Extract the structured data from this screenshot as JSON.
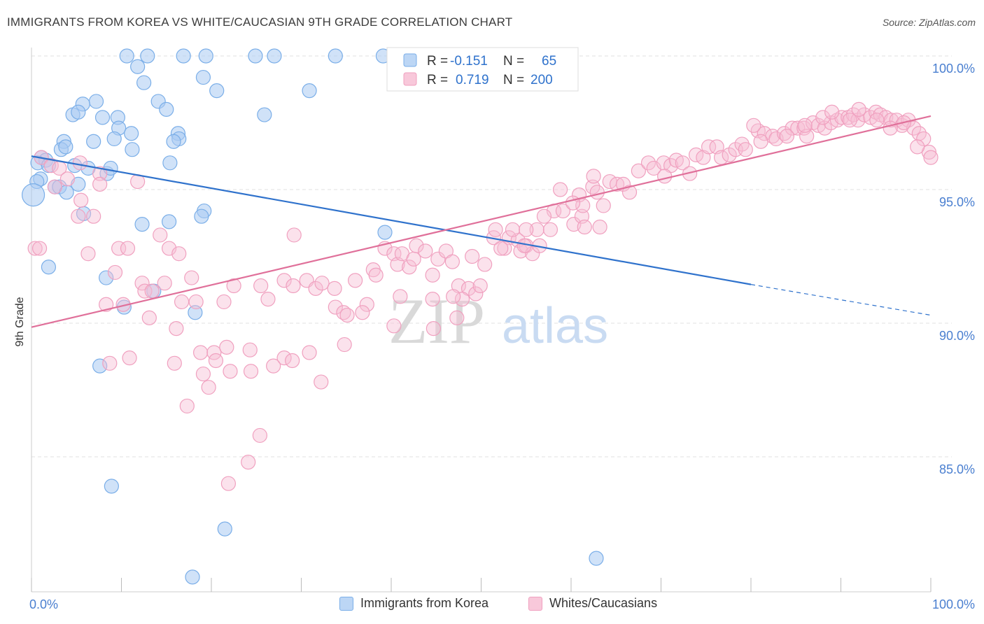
{
  "title": "IMMIGRANTS FROM KOREA VS WHITE/CAUCASIAN 9TH GRADE CORRELATION CHART",
  "source": "Source: ZipAtlas.com",
  "watermark": {
    "zip": "ZIP",
    "atlas": "atlas"
  },
  "legend_box": {
    "rows": [
      {
        "r_label": "R =",
        "r_value": "-0.151",
        "n_label": "N =",
        "n_value": "65"
      },
      {
        "r_label": "R =",
        "r_value": "0.719",
        "n_label": "N =",
        "n_value": "200"
      }
    ]
  },
  "chart_data": {
    "type": "scatter",
    "title": "IMMIGRANTS FROM KOREA VS WHITE/CAUCASIAN 9TH GRADE CORRELATION CHART",
    "xlabel": "",
    "ylabel": "9th Grade",
    "xlim": [
      0,
      100
    ],
    "ylim": [
      80.3,
      100.5
    ],
    "x_tick_labels": [
      "0.0%",
      "100.0%"
    ],
    "y_ticks": [
      85,
      90,
      95,
      100
    ],
    "y_tick_labels": [
      "85.0%",
      "90.0%",
      "95.0%",
      "100.0%"
    ],
    "grid": true,
    "legend_position": "top-center",
    "series": [
      {
        "name": "Immigrants from Korea",
        "color": "#7aaee8",
        "line_color": "#2f72cc",
        "trend": {
          "x0": 0,
          "y0": 96.25,
          "x1": 80,
          "y1": 91.45,
          "x_dash_end": 100,
          "y_dash_end": 90.3
        },
        "points": [
          [
            10.6,
            100
          ],
          [
            12.9,
            100
          ],
          [
            16.9,
            100
          ],
          [
            19.4,
            100
          ],
          [
            24.9,
            100
          ],
          [
            27.0,
            100
          ],
          [
            33.8,
            100
          ],
          [
            39.1,
            100
          ],
          [
            11.8,
            99.6
          ],
          [
            12.5,
            99.0
          ],
          [
            19.1,
            99.2
          ],
          [
            20.6,
            98.7
          ],
          [
            30.9,
            98.7
          ],
          [
            7.2,
            98.3
          ],
          [
            5.7,
            98.2
          ],
          [
            14.1,
            98.3
          ],
          [
            15.0,
            98.0
          ],
          [
            25.9,
            97.8
          ],
          [
            4.6,
            97.8
          ],
          [
            5.2,
            97.9
          ],
          [
            7.9,
            97.7
          ],
          [
            9.6,
            97.7
          ],
          [
            9.7,
            97.3
          ],
          [
            11.1,
            97.1
          ],
          [
            16.3,
            97.1
          ],
          [
            16.4,
            96.9
          ],
          [
            3.6,
            96.8
          ],
          [
            6.9,
            96.8
          ],
          [
            9.2,
            96.9
          ],
          [
            15.8,
            96.8
          ],
          [
            3.3,
            96.5
          ],
          [
            3.8,
            96.6
          ],
          [
            11.2,
            96.5
          ],
          [
            1.1,
            96.2
          ],
          [
            1.6,
            96.1
          ],
          [
            0.7,
            96.0
          ],
          [
            1.9,
            95.9
          ],
          [
            4.8,
            95.9
          ],
          [
            6.3,
            95.8
          ],
          [
            8.4,
            95.6
          ],
          [
            8.8,
            95.8
          ],
          [
            15.4,
            96.0
          ],
          [
            1.0,
            95.4
          ],
          [
            0.6,
            95.3
          ],
          [
            2.6,
            95.1
          ],
          [
            3.1,
            95.1
          ],
          [
            3.9,
            94.9
          ],
          [
            5.2,
            95.2
          ],
          [
            0.2,
            94.8
          ],
          [
            19.2,
            94.2
          ],
          [
            18.9,
            94.0
          ],
          [
            5.8,
            94.1
          ],
          [
            12.3,
            93.7
          ],
          [
            15.3,
            93.8
          ],
          [
            39.3,
            93.4
          ],
          [
            1.9,
            92.1
          ],
          [
            8.3,
            91.7
          ],
          [
            13.6,
            91.2
          ],
          [
            10.3,
            90.6
          ],
          [
            18.2,
            90.4
          ],
          [
            7.6,
            88.4
          ],
          [
            8.9,
            83.9
          ],
          [
            21.5,
            82.3
          ],
          [
            62.8,
            81.2
          ],
          [
            17.9,
            80.5
          ]
        ]
      },
      {
        "name": "Whites/Caucasians",
        "color": "#f0a0bf",
        "line_color": "#e0709a",
        "trend": {
          "x0": 0,
          "y0": 89.85,
          "x1": 100,
          "y1": 97.75
        },
        "points": [
          [
            1.1,
            96.2
          ],
          [
            2.2,
            95.9
          ],
          [
            3.1,
            95.8
          ],
          [
            4.0,
            95.4
          ],
          [
            5.4,
            96.0
          ],
          [
            2.6,
            95.1
          ],
          [
            7.6,
            95.6
          ],
          [
            7.6,
            95.2
          ],
          [
            11.8,
            95.3
          ],
          [
            5.5,
            94.6
          ],
          [
            5.2,
            94.0
          ],
          [
            6.9,
            94.0
          ],
          [
            0.4,
            92.8
          ],
          [
            0.9,
            92.8
          ],
          [
            6.3,
            92.6
          ],
          [
            9.7,
            92.8
          ],
          [
            10.7,
            92.8
          ],
          [
            14.3,
            93.3
          ],
          [
            15.3,
            92.8
          ],
          [
            16.4,
            92.6
          ],
          [
            29.2,
            93.3
          ],
          [
            9.3,
            91.9
          ],
          [
            12.3,
            91.5
          ],
          [
            14.8,
            91.5
          ],
          [
            17.8,
            91.7
          ],
          [
            12.6,
            91.2
          ],
          [
            13.4,
            91.2
          ],
          [
            8.3,
            90.7
          ],
          [
            10.2,
            90.7
          ],
          [
            16.7,
            90.8
          ],
          [
            18.3,
            90.8
          ],
          [
            21.4,
            90.8
          ],
          [
            22.5,
            91.4
          ],
          [
            25.5,
            91.4
          ],
          [
            26.3,
            90.9
          ],
          [
            28.1,
            91.6
          ],
          [
            29.1,
            91.4
          ],
          [
            30.6,
            91.6
          ],
          [
            31.6,
            91.3
          ],
          [
            32.3,
            91.5
          ],
          [
            13.1,
            90.2
          ],
          [
            16.1,
            89.8
          ],
          [
            18.8,
            88.9
          ],
          [
            20.3,
            88.9
          ],
          [
            21.7,
            89.1
          ],
          [
            24.3,
            89.0
          ],
          [
            28.1,
            88.7
          ],
          [
            29.0,
            88.6
          ],
          [
            10.9,
            88.7
          ],
          [
            15.9,
            88.5
          ],
          [
            20.5,
            88.6
          ],
          [
            26.9,
            88.4
          ],
          [
            30.9,
            88.9
          ],
          [
            32.2,
            87.8
          ],
          [
            34.8,
            89.2
          ],
          [
            22.1,
            88.2
          ],
          [
            24.4,
            88.2
          ],
          [
            19.1,
            88.1
          ],
          [
            19.7,
            87.6
          ],
          [
            17.3,
            86.9
          ],
          [
            25.4,
            85.8
          ],
          [
            24.1,
            84.8
          ],
          [
            21.9,
            84.0
          ],
          [
            8.7,
            88.5
          ],
          [
            33.8,
            90.6
          ],
          [
            34.7,
            90.4
          ],
          [
            35.1,
            90.3
          ],
          [
            37.3,
            90.7
          ],
          [
            36.8,
            90.4
          ],
          [
            33.7,
            91.3
          ],
          [
            36.0,
            91.6
          ],
          [
            38.0,
            92.0
          ],
          [
            38.3,
            91.8
          ],
          [
            39.3,
            92.8
          ],
          [
            40.3,
            92.6
          ],
          [
            40.7,
            92.2
          ],
          [
            41.2,
            92.6
          ],
          [
            42.0,
            92.1
          ],
          [
            42.5,
            92.4
          ],
          [
            42.8,
            92.9
          ],
          [
            43.8,
            92.7
          ],
          [
            45.2,
            92.4
          ],
          [
            44.6,
            91.8
          ],
          [
            46.1,
            92.7
          ],
          [
            46.8,
            92.3
          ],
          [
            47.5,
            91.4
          ],
          [
            48.6,
            91.3
          ],
          [
            49.4,
            91.1
          ],
          [
            49.9,
            91.4
          ],
          [
            44.6,
            90.9
          ],
          [
            47.9,
            90.9
          ],
          [
            41.0,
            91.0
          ],
          [
            40.3,
            89.9
          ],
          [
            44.7,
            89.8
          ],
          [
            51.4,
            93.2
          ],
          [
            51.6,
            93.5
          ],
          [
            53.1,
            93.2
          ],
          [
            52.6,
            92.8
          ],
          [
            54.1,
            93.1
          ],
          [
            54.4,
            92.7
          ],
          [
            53.5,
            93.5
          ],
          [
            55.0,
            92.9
          ],
          [
            56.2,
            93.5
          ],
          [
            57.7,
            93.5
          ],
          [
            58.1,
            94.2
          ],
          [
            59.1,
            94.2
          ],
          [
            60.3,
            93.7
          ],
          [
            61.2,
            94.0
          ],
          [
            58.8,
            95.0
          ],
          [
            60.9,
            94.8
          ],
          [
            61.3,
            94.4
          ],
          [
            62.4,
            95.1
          ],
          [
            62.9,
            94.9
          ],
          [
            63.6,
            94.4
          ],
          [
            64.3,
            95.3
          ],
          [
            65.1,
            95.2
          ],
          [
            65.8,
            95.2
          ],
          [
            66.5,
            94.9
          ],
          [
            67.5,
            95.7
          ],
          [
            68.6,
            96.0
          ],
          [
            69.2,
            95.8
          ],
          [
            70.3,
            96.0
          ],
          [
            71.1,
            95.9
          ],
          [
            71.7,
            96.1
          ],
          [
            72.4,
            96.0
          ],
          [
            73.2,
            95.6
          ],
          [
            73.9,
            96.3
          ],
          [
            74.7,
            96.2
          ],
          [
            75.3,
            96.6
          ],
          [
            76.2,
            96.6
          ],
          [
            76.7,
            96.2
          ],
          [
            77.6,
            96.3
          ],
          [
            78.3,
            96.5
          ],
          [
            79.0,
            96.7
          ],
          [
            79.4,
            96.5
          ],
          [
            70.4,
            95.5
          ],
          [
            63.2,
            93.6
          ],
          [
            61.5,
            93.6
          ],
          [
            62.5,
            95.5
          ],
          [
            60.2,
            94.5
          ],
          [
            55.7,
            92.6
          ],
          [
            55.0,
            93.5
          ],
          [
            57.0,
            94.0
          ],
          [
            54.8,
            92.9
          ],
          [
            52.2,
            92.8
          ],
          [
            50.4,
            92.2
          ],
          [
            56.5,
            92.9
          ],
          [
            49.0,
            92.5
          ],
          [
            46.9,
            91.0
          ],
          [
            47.3,
            90.2
          ],
          [
            80.8,
            97.2
          ],
          [
            81.5,
            97.1
          ],
          [
            82.4,
            97.0
          ],
          [
            82.8,
            96.9
          ],
          [
            83.7,
            97.1
          ],
          [
            84.6,
            97.3
          ],
          [
            85.2,
            97.3
          ],
          [
            85.9,
            97.3
          ],
          [
            86.2,
            97.0
          ],
          [
            86.9,
            97.5
          ],
          [
            87.5,
            97.4
          ],
          [
            88.2,
            97.3
          ],
          [
            88.9,
            97.5
          ],
          [
            89.6,
            97.6
          ],
          [
            90.1,
            97.7
          ],
          [
            90.8,
            97.7
          ],
          [
            91.4,
            97.8
          ],
          [
            91.9,
            97.6
          ],
          [
            92.6,
            97.8
          ],
          [
            93.3,
            97.7
          ],
          [
            93.9,
            97.9
          ],
          [
            94.4,
            97.8
          ],
          [
            95.0,
            97.7
          ],
          [
            95.6,
            97.6
          ],
          [
            96.2,
            97.6
          ],
          [
            96.8,
            97.4
          ],
          [
            97.5,
            97.6
          ],
          [
            98.1,
            97.3
          ],
          [
            98.7,
            97.1
          ],
          [
            99.2,
            96.9
          ],
          [
            99.8,
            96.4
          ],
          [
            100.0,
            96.2
          ],
          [
            80.3,
            97.4
          ],
          [
            81.1,
            96.8
          ],
          [
            84.0,
            97.0
          ],
          [
            86.0,
            97.4
          ],
          [
            88.0,
            97.7
          ],
          [
            89.0,
            97.9
          ],
          [
            91.0,
            97.6
          ],
          [
            92.0,
            98.0
          ],
          [
            94.0,
            97.6
          ],
          [
            95.5,
            97.3
          ],
          [
            97.0,
            97.5
          ],
          [
            98.5,
            96.6
          ]
        ]
      }
    ]
  }
}
